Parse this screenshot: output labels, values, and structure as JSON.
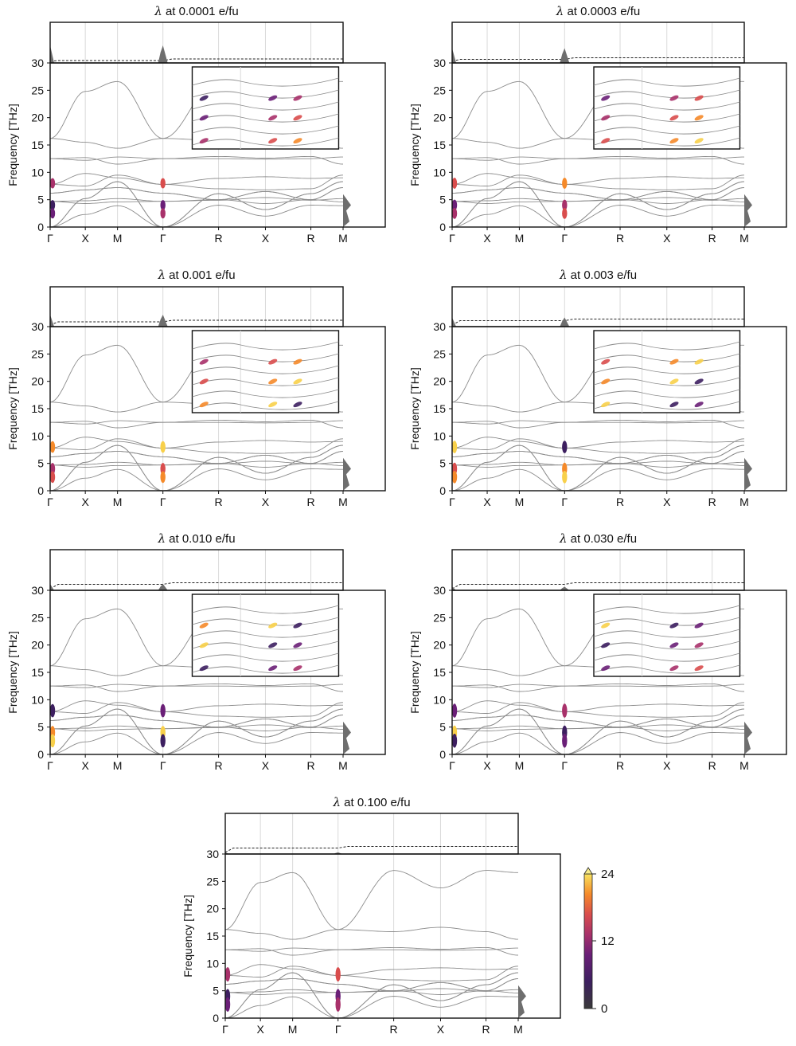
{
  "chart_data": {
    "type": "line",
    "figure_kind": "phonon band structure with electron-phonon coupling (lambda) overlay",
    "ylabel": "Frequency [THz]",
    "ylim": [
      0,
      30
    ],
    "yticks": [
      0,
      5,
      10,
      15,
      20,
      25,
      30
    ],
    "kpath": [
      "Γ",
      "X",
      "M",
      "Γ",
      "R",
      "X",
      "R",
      "M"
    ],
    "kpath_positions": [
      0,
      0.12,
      0.23,
      0.385,
      0.575,
      0.735,
      0.89,
      1.0
    ],
    "colorbar": {
      "ticks": [
        "0",
        "12",
        "24"
      ],
      "min": 0,
      "max": 24,
      "colormap": "inferno",
      "extend": "max"
    },
    "panels": [
      {
        "title_symbol": "λ",
        "title_rest": " at 0.0001 e/fu",
        "doping": 0.0001
      },
      {
        "title_symbol": "λ",
        "title_rest": " at 0.0003 e/fu",
        "doping": 0.0003
      },
      {
        "title_symbol": "λ",
        "title_rest": " at 0.001 e/fu",
        "doping": 0.001
      },
      {
        "title_symbol": "λ",
        "title_rest": " at 0.003 e/fu",
        "doping": 0.003
      },
      {
        "title_symbol": "λ",
        "title_rest": " at 0.010 e/fu",
        "doping": 0.01
      },
      {
        "title_symbol": "λ",
        "title_rest": " at 0.030 e/fu",
        "doping": 0.03
      },
      {
        "title_symbol": "λ",
        "title_rest": " at 0.100 e/fu",
        "doping": 0.1
      }
    ],
    "bands_thz": [
      [
        0,
        5.2,
        8.3,
        0,
        6.1,
        3.2,
        6.1,
        8.3
      ],
      [
        0,
        5.2,
        8.3,
        0,
        6.1,
        3.2,
        6.1,
        8.3
      ],
      [
        0,
        2.3,
        3.9,
        0,
        4.0,
        2.0,
        4.0,
        3.9
      ],
      [
        6.2,
        6.8,
        7.2,
        6.2,
        5.0,
        6.5,
        5.0,
        7.2
      ],
      [
        6.2,
        6.8,
        7.2,
        6.2,
        5.0,
        6.5,
        5.0,
        7.2
      ],
      [
        4.7,
        4.3,
        4.6,
        4.7,
        5.0,
        4.3,
        5.0,
        4.6
      ],
      [
        4.7,
        4.8,
        5.2,
        4.7,
        4.9,
        5.4,
        4.9,
        5.2
      ],
      [
        7.8,
        7.5,
        9.5,
        7.8,
        7.0,
        6.8,
        7.0,
        9.5
      ],
      [
        7.8,
        9.8,
        9.0,
        7.8,
        8.9,
        9.2,
        8.9,
        9.0
      ],
      [
        12.5,
        12.7,
        11.5,
        12.5,
        12.9,
        12.6,
        12.9,
        11.5
      ],
      [
        12.5,
        12.2,
        12.8,
        12.5,
        12.5,
        12.4,
        12.5,
        12.8
      ],
      [
        16.2,
        15.5,
        14.4,
        16.2,
        15.8,
        16.6,
        15.8,
        14.4
      ],
      [
        16.2,
        24.8,
        26.6,
        16.2,
        27.0,
        23.8,
        27.0,
        26.6
      ]
    ]
  }
}
